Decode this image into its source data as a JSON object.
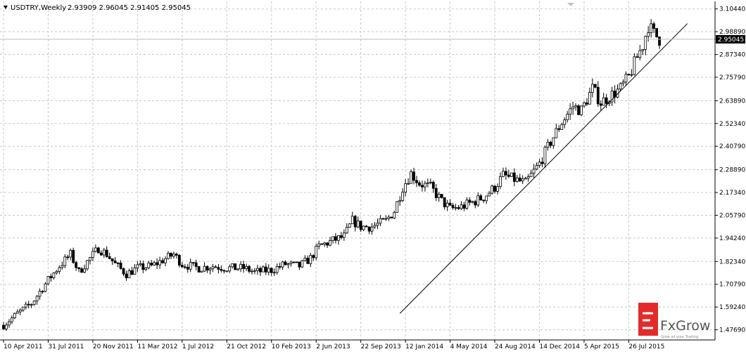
{
  "header": {
    "symbol_label": "USDTRY,Weekly",
    "ohlc_label": "2.93909 2.96045 2.91405 2.95045"
  },
  "logo": {
    "brand": "FxGrow",
    "tagline": "Grow all your Trading"
  },
  "colors": {
    "up_body": "#ffffff",
    "down_body": "#000000",
    "wick": "#000000",
    "grid": "#c8c8c8",
    "price_line": "#bbbbbb",
    "trendline": "#000000",
    "logo_red": "#e32b2b"
  },
  "chart_data": {
    "type": "candlestick",
    "title": "USDTRY,Weekly",
    "y_range": [
      1.4255,
      3.1425
    ],
    "x_range": [
      "2011-04-10",
      "2015-10-11"
    ],
    "y_ticks": [
      "3.10440",
      "2.98890",
      "2.87340",
      "2.75790",
      "2.63890",
      "2.52340",
      "2.40790",
      "2.28890",
      "2.17340",
      "2.05790",
      "1.94240",
      "1.82340",
      "1.70790",
      "1.59240",
      "1.47690"
    ],
    "x_ticks": [
      "10 Apr 2011",
      "31 Jul 2011",
      "20 Nov 2011",
      "11 Mar 2012",
      "1 Jul 2012",
      "21 Oct 2012",
      "10 Feb 2013",
      "2 Jun 2013",
      "22 Sep 2013",
      "12 Jan 2014",
      "4 May 2014",
      "24 Aug 2014",
      "14 Dec 2014",
      "5 Apr 2015",
      "26 Jul 2015"
    ],
    "current_price": "2.95045",
    "grid": true,
    "anchors": [
      [
        "2011-04-10",
        1.5
      ],
      [
        "2011-05-15",
        1.56
      ],
      [
        "2011-06-19",
        1.61
      ],
      [
        "2011-07-31",
        1.73
      ],
      [
        "2011-08-28",
        1.8
      ],
      [
        "2011-09-25",
        1.86
      ],
      [
        "2011-10-16",
        1.77
      ],
      [
        "2011-11-13",
        1.84
      ],
      [
        "2011-12-04",
        1.89
      ],
      [
        "2011-12-25",
        1.86
      ],
      [
        "2012-01-15",
        1.81
      ],
      [
        "2012-02-12",
        1.76
      ],
      [
        "2012-03-11",
        1.79
      ],
      [
        "2012-04-15",
        1.8
      ],
      [
        "2012-05-13",
        1.83
      ],
      [
        "2012-06-10",
        1.86
      ],
      [
        "2012-07-01",
        1.81
      ],
      [
        "2012-08-12",
        1.79
      ],
      [
        "2012-09-16",
        1.8
      ],
      [
        "2012-10-21",
        1.79
      ],
      [
        "2012-12-02",
        1.79
      ],
      [
        "2012-12-30",
        1.77
      ],
      [
        "2013-02-10",
        1.78
      ],
      [
        "2013-03-17",
        1.81
      ],
      [
        "2013-04-21",
        1.8
      ],
      [
        "2013-05-19",
        1.84
      ],
      [
        "2013-06-09",
        1.9
      ],
      [
        "2013-07-14",
        1.93
      ],
      [
        "2013-08-11",
        1.95
      ],
      [
        "2013-09-01",
        2.03
      ],
      [
        "2013-09-22",
        2.0
      ],
      [
        "2013-10-20",
        2.0
      ],
      [
        "2013-11-24",
        2.03
      ],
      [
        "2013-12-15",
        2.08
      ],
      [
        "2014-01-05",
        2.2
      ],
      [
        "2014-01-26",
        2.27
      ],
      [
        "2014-02-16",
        2.22
      ],
      [
        "2014-03-16",
        2.2
      ],
      [
        "2014-04-13",
        2.13
      ],
      [
        "2014-05-04",
        2.09
      ],
      [
        "2014-06-01",
        2.1
      ],
      [
        "2014-07-06",
        2.13
      ],
      [
        "2014-07-27",
        2.15
      ],
      [
        "2014-08-24",
        2.2
      ],
      [
        "2014-09-14",
        2.26
      ],
      [
        "2014-10-12",
        2.24
      ],
      [
        "2014-11-09",
        2.22
      ],
      [
        "2014-12-14",
        2.32
      ],
      [
        "2015-01-11",
        2.43
      ],
      [
        "2015-02-08",
        2.53
      ],
      [
        "2015-03-08",
        2.61
      ],
      [
        "2015-03-29",
        2.59
      ],
      [
        "2015-04-26",
        2.7
      ],
      [
        "2015-05-17",
        2.63
      ],
      [
        "2015-06-14",
        2.67
      ],
      [
        "2015-07-05",
        2.7
      ],
      [
        "2015-07-26",
        2.76
      ],
      [
        "2015-08-16",
        2.86
      ],
      [
        "2015-08-30",
        2.92
      ],
      [
        "2015-09-13",
        3.02
      ],
      [
        "2015-09-27",
        2.98
      ],
      [
        "2015-10-11",
        2.95
      ]
    ],
    "trendline": {
      "start": [
        "2013-12-29",
        1.56
      ],
      "end": [
        "2015-12-20",
        3.03
      ]
    }
  }
}
